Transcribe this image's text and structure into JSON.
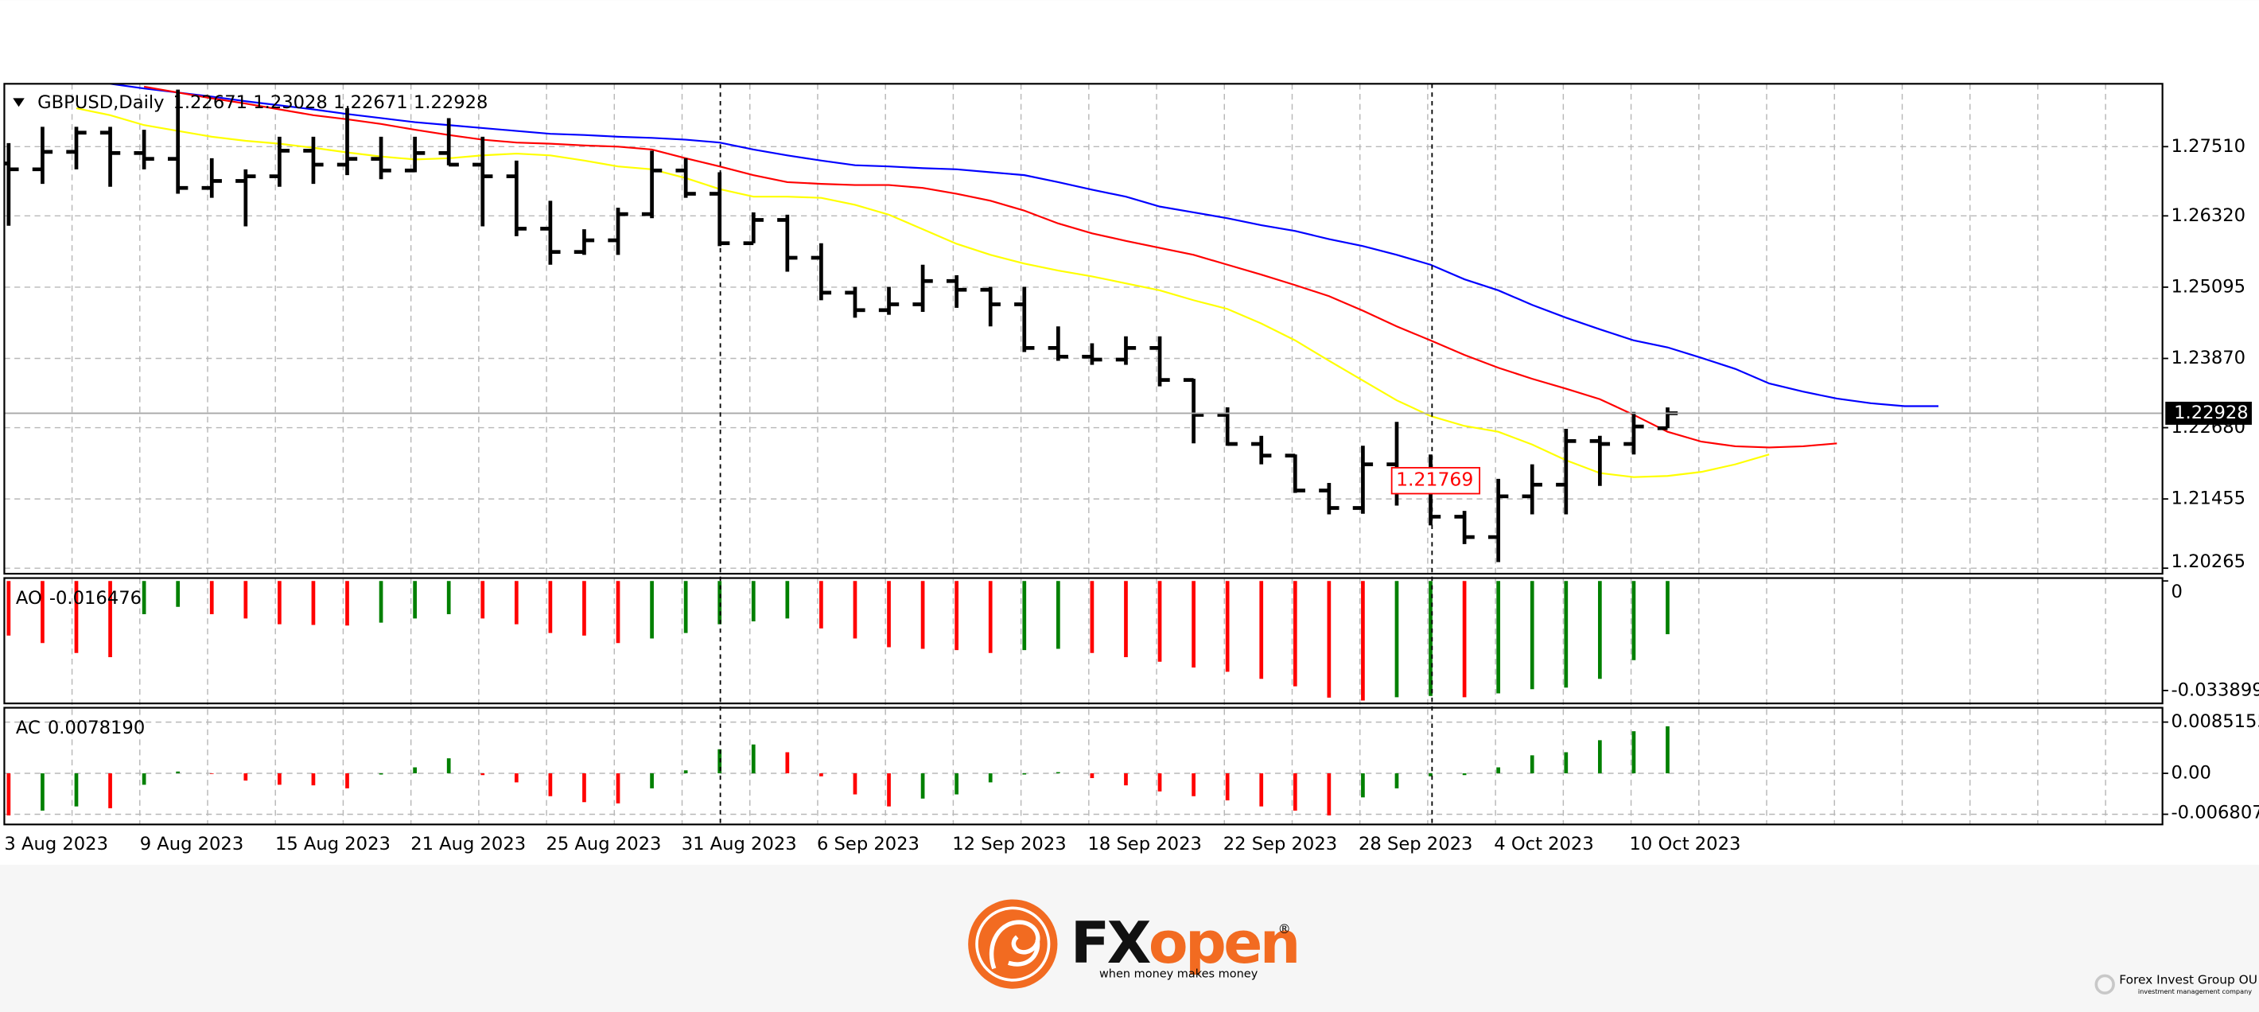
{
  "chart_data": [
    {
      "type": "ohlc",
      "title": "GBPUSD,Daily",
      "color": "#000000",
      "categories": [
        "3 Aug 2023",
        null,
        null,
        null,
        "9 Aug 2023",
        null,
        null,
        null,
        "15 Aug 2023",
        null,
        null,
        null,
        "21 Aug 2023",
        null,
        null,
        null,
        "25 Aug 2023",
        null,
        null,
        null,
        "31 Aug 2023",
        null,
        null,
        null,
        "6 Sep 2023",
        null,
        null,
        null,
        "12 Sep 2023",
        null,
        null,
        null,
        "18 Sep 2023",
        null,
        null,
        null,
        "22 Sep 2023",
        null,
        null,
        null,
        "28 Sep 2023",
        null,
        null,
        null,
        "4 Oct 2023",
        null,
        null,
        null,
        "10 Oct 2023",
        null,
        null,
        null,
        null,
        null,
        null,
        null,
        null,
        null
      ],
      "open": [
        1.2722,
        1.2712,
        1.2742,
        1.2775,
        1.274,
        1.273,
        1.268,
        1.2692,
        1.27,
        1.2744,
        1.272,
        1.273,
        1.271,
        1.274,
        1.272,
        1.27,
        1.261,
        1.257,
        1.259,
        1.2635,
        1.271,
        1.267,
        1.2585,
        1.2625,
        1.256,
        1.25,
        1.247,
        1.248,
        1.252,
        1.2505,
        1.248,
        1.2405,
        1.239,
        1.2385,
        1.2405,
        1.235,
        1.229,
        1.224,
        1.222,
        1.216,
        1.213,
        1.2205,
        1.219,
        1.2115,
        1.208,
        1.215,
        1.217,
        1.2245,
        1.224,
        1.22671,
        null,
        null,
        null,
        null,
        null,
        null,
        null,
        null
      ],
      "high": [
        1.2757,
        1.2785,
        1.2785,
        1.2785,
        1.278,
        1.2849,
        1.2731,
        1.2712,
        1.2768,
        1.2768,
        1.2817,
        1.2768,
        1.2768,
        1.28,
        1.2768,
        1.2727,
        1.2658,
        1.2609,
        1.2646,
        1.2744,
        1.2731,
        1.2707,
        1.2638,
        1.2634,
        1.2585,
        1.251,
        1.251,
        1.2548,
        1.253,
        1.251,
        1.251,
        1.2442,
        1.2413,
        1.2425,
        1.2425,
        1.2352,
        1.2303,
        1.2254,
        1.2222,
        1.2173,
        1.2237,
        1.2278,
        1.2222,
        1.2125,
        1.218,
        1.2205,
        1.2266,
        1.2254,
        1.2295,
        1.23028,
        null,
        null,
        null,
        null,
        null,
        null,
        null,
        null
      ],
      "low": [
        1.2615,
        1.2687,
        1.2712,
        1.2682,
        1.2712,
        1.267,
        1.2663,
        1.2614,
        1.2682,
        1.2687,
        1.2702,
        1.2695,
        1.2707,
        1.2719,
        1.2614,
        1.2597,
        1.2548,
        1.2565,
        1.2565,
        1.2628,
        1.2663,
        1.258,
        1.2585,
        1.2536,
        1.2487,
        1.2457,
        1.2462,
        1.2467,
        1.2474,
        1.2442,
        1.2398,
        1.2383,
        1.2376,
        1.2376,
        1.2339,
        1.2241,
        1.2237,
        1.2205,
        1.2156,
        1.2119,
        1.212,
        1.2134,
        1.21,
        1.2068,
        1.2037,
        1.2119,
        1.2119,
        1.2168,
        1.2222,
        1.22671,
        null,
        null,
        null,
        null,
        null,
        null,
        null,
        null
      ],
      "close": [
        1.2712,
        1.2742,
        1.2775,
        1.274,
        1.273,
        1.268,
        1.2692,
        1.27,
        1.2744,
        1.272,
        1.273,
        1.271,
        1.274,
        1.272,
        1.27,
        1.261,
        1.257,
        1.259,
        1.2635,
        1.271,
        1.267,
        1.2585,
        1.2625,
        1.256,
        1.25,
        1.247,
        1.248,
        1.252,
        1.2505,
        1.248,
        1.2405,
        1.239,
        1.2385,
        1.2405,
        1.235,
        1.229,
        1.224,
        1.222,
        1.216,
        1.213,
        1.2205,
        1.219,
        1.2115,
        1.208,
        1.215,
        1.217,
        1.2245,
        1.224,
        1.227,
        1.22928,
        null,
        null,
        null,
        null,
        null,
        null,
        null,
        null
      ],
      "lines": [
        {
          "color": "#0000ff",
          "values": [
            null,
            null,
            null,
            1.2859,
            1.2851,
            1.2844,
            1.2837,
            1.2829,
            1.2822,
            1.2815,
            1.2807,
            1.28,
            1.2793,
            1.2788,
            1.2783,
            1.2778,
            1.2773,
            1.2771,
            1.2768,
            1.2766,
            1.2763,
            1.2758,
            1.2746,
            1.2736,
            1.2727,
            1.2719,
            1.2717,
            1.2714,
            1.2712,
            1.2707,
            1.2702,
            1.269,
            1.2677,
            1.2665,
            1.2648,
            1.2638,
            1.2628,
            1.2616,
            1.2606,
            1.2592,
            1.258,
            1.2565,
            1.2548,
            1.2523,
            1.2504,
            1.2479,
            1.2457,
            1.2437,
            1.2418,
            1.2406,
            1.2388,
            1.2369,
            1.2344,
            1.233,
            1.2318,
            1.231,
            1.2305,
            1.2305
          ]
        },
        {
          "color": "#ff0000",
          "values": [
            null,
            null,
            null,
            null,
            1.2854,
            1.2844,
            1.2834,
            1.2825,
            1.2815,
            1.2805,
            1.2798,
            1.279,
            1.278,
            1.2771,
            1.2763,
            1.2758,
            1.2756,
            1.2753,
            1.2751,
            1.2746,
            1.2731,
            1.2717,
            1.2702,
            1.269,
            1.2687,
            1.2685,
            1.2685,
            1.268,
            1.267,
            1.2658,
            1.2641,
            1.2619,
            1.2602,
            1.2589,
            1.2577,
            1.2565,
            1.2548,
            1.2531,
            1.2513,
            1.2494,
            1.2469,
            1.2442,
            1.2418,
            1.2393,
            1.2371,
            1.2352,
            1.2335,
            1.2317,
            1.229,
            1.2261,
            1.2244,
            1.2236,
            1.2234,
            1.2236,
            1.2241,
            null,
            null,
            null
          ]
        },
        {
          "color": "#ffff00",
          "values": [
            null,
            null,
            1.2817,
            1.2805,
            1.2788,
            1.2778,
            1.2768,
            1.2761,
            1.2756,
            1.2749,
            1.2741,
            1.2734,
            1.2729,
            1.2731,
            1.2736,
            1.2739,
            1.2736,
            1.2727,
            1.2717,
            1.2712,
            1.2697,
            1.2678,
            1.2665,
            1.2665,
            1.2663,
            1.2651,
            1.2634,
            1.2609,
            1.2584,
            1.2565,
            1.255,
            1.2538,
            1.2528,
            1.2516,
            1.2504,
            1.2487,
            1.2472,
            1.2447,
            1.2418,
            1.2383,
            1.2349,
            1.2315,
            1.2288,
            1.2271,
            1.2261,
            1.2239,
            1.2212,
            1.219,
            1.2183,
            1.2185,
            1.2192,
            1.2205,
            1.2222,
            null,
            null,
            null,
            null,
            null
          ]
        }
      ],
      "price_label": 1.21769,
      "ylim": [
        1.2017,
        1.2859
      ],
      "yticks": [
        {
          "value": 1.2751,
          "label": "1.27510"
        },
        {
          "value": 1.2632,
          "label": "1.26320"
        },
        1.25095,
        {
          "value": 1.2387,
          "label": "1.23870"
        },
        {
          "value": 1.2268,
          "label": "1.22680"
        },
        1.21455,
        1.20265
      ],
      "grid": true
    },
    {
      "type": "bar",
      "title": "AO",
      "up_color": "#008000",
      "down_color": "#ff0000",
      "values": [
        -0.0169,
        -0.0192,
        -0.0223,
        -0.0236,
        -0.0103,
        -0.008,
        -0.0103,
        -0.0116,
        -0.0134,
        -0.0136,
        -0.0138,
        -0.0129,
        -0.0116,
        -0.0103,
        -0.0116,
        -0.0134,
        -0.0161,
        -0.0169,
        -0.0192,
        -0.0178,
        -0.0161,
        -0.0134,
        -0.0125,
        -0.0116,
        -0.0147,
        -0.0178,
        -0.0205,
        -0.021,
        -0.0214,
        -0.0223,
        -0.0214,
        -0.021,
        -0.0223,
        -0.0236,
        -0.025,
        -0.0268,
        -0.0281,
        -0.0303,
        -0.0326,
        -0.0361,
        -0.037,
        -0.036,
        -0.0356,
        -0.036,
        -0.0348,
        -0.0335,
        -0.033,
        -0.0303,
        -0.0245,
        -0.016476,
        null,
        null,
        null,
        null,
        null,
        null,
        null,
        null
      ],
      "ylim": [
        -0.0379,
        0.0009
      ],
      "yticks": [
        0,
        -0.033899
      ],
      "grid": false
    },
    {
      "type": "bar",
      "title": "AC",
      "up_color": "#008000",
      "down_color": "#ff0000",
      "values": [
        -0.007,
        -0.0062,
        -0.0055,
        -0.0058,
        -0.0019,
        0.0003,
        -0.0001,
        -0.0012,
        -0.0019,
        -0.002,
        -0.0025,
        -0.0002,
        0.001,
        0.0025,
        -0.0003,
        -0.0015,
        -0.0038,
        -0.0048,
        -0.005,
        -0.0025,
        0.0005,
        0.004,
        0.0048,
        0.0035,
        -0.0005,
        -0.0035,
        -0.0055,
        -0.0042,
        -0.0035,
        -0.0015,
        -0.0002,
        0.0002,
        -0.0008,
        -0.002,
        -0.003,
        -0.0038,
        -0.0045,
        -0.0055,
        -0.0062,
        -0.007,
        -0.004,
        -0.0025,
        -0.0005,
        -0.0003,
        0.001,
        0.003,
        0.0035,
        0.0055,
        0.007,
        0.007819,
        null,
        null,
        null,
        null,
        null,
        null,
        null,
        null
      ],
      "value_labels": [
        null,
        null,
        null,
        null,
        null,
        null,
        null,
        null,
        null,
        null,
        null,
        null,
        null,
        null,
        null,
        null,
        null,
        null,
        null,
        null,
        null,
        null,
        null,
        null,
        null,
        null,
        null,
        null,
        null,
        null,
        null,
        null,
        null,
        null,
        null,
        null,
        null,
        null,
        null,
        null,
        null,
        null,
        null,
        null,
        null,
        null,
        null,
        null,
        null,
        "0.0078190",
        null,
        null,
        null,
        null,
        null,
        null,
        null,
        null
      ],
      "ylim": [
        -0.0085,
        0.0109
      ],
      "yticks": [
        0.0085155,
        {
          "value": 0,
          "label": "0.00"
        },
        -0.006807
      ],
      "grid": true
    }
  ],
  "footer": {
    "brand_fx": "FX",
    "brand_open": "open",
    "registered": "®",
    "tagline": "when money makes money",
    "group": "Forex Invest Group OU",
    "group_sub": "investment management company"
  }
}
